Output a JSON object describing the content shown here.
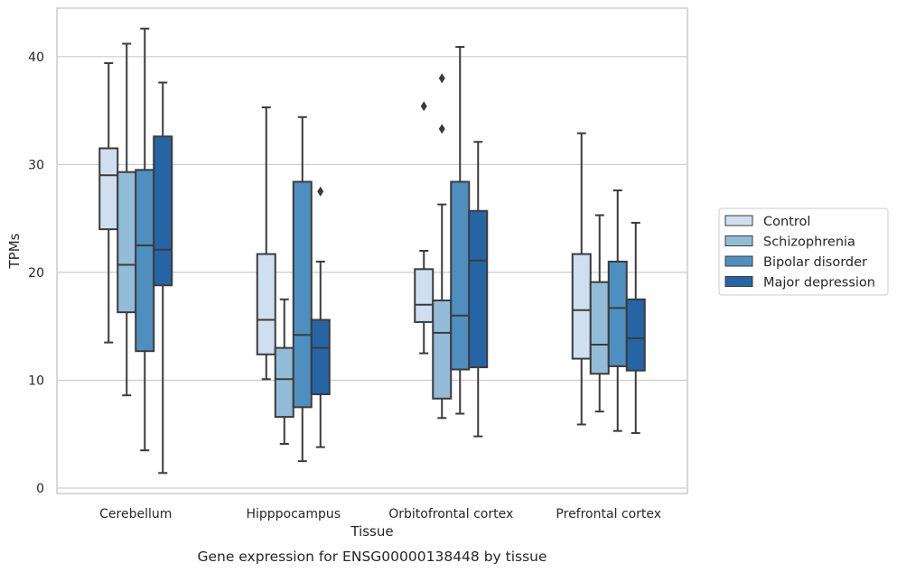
{
  "caption": "Gene expression for ENSG00000138448 by tissue",
  "colors": {
    "Control": "#cfdff0",
    "Schizophrenia": "#93bcd8",
    "Bipolar disorder": "#4f8fbf",
    "Major depression": "#2565a6",
    "line": "#3b3b3b",
    "grid": "#cccccc",
    "frame": "#cccccc"
  },
  "chart_data": {
    "type": "box",
    "xlabel": "Tissue",
    "ylabel": "TPMs",
    "ylim": [
      -0.5,
      44.5
    ],
    "yticks": [
      0,
      10,
      20,
      30,
      40
    ],
    "grid": "horizontal",
    "legend_position": "right",
    "categories": [
      "Cerebellum",
      "Hipppocampus",
      "Orbitofrontal cortex",
      "Prefrontal cortex"
    ],
    "series": [
      {
        "name": "Control",
        "boxes": [
          {
            "whisker_low": 13.5,
            "q1": 24.0,
            "median": 29.0,
            "q3": 31.5,
            "whisker_high": 39.4,
            "outliers": []
          },
          {
            "whisker_low": 10.1,
            "q1": 12.4,
            "median": 15.6,
            "q3": 21.7,
            "whisker_high": 35.3,
            "outliers": []
          },
          {
            "whisker_low": 12.5,
            "q1": 15.4,
            "median": 17.0,
            "q3": 20.3,
            "whisker_high": 22.0,
            "outliers": [
              35.4
            ]
          },
          {
            "whisker_low": 5.9,
            "q1": 12.0,
            "median": 16.5,
            "q3": 21.7,
            "whisker_high": 32.9,
            "outliers": []
          }
        ]
      },
      {
        "name": "Schizophrenia",
        "boxes": [
          {
            "whisker_low": 8.6,
            "q1": 16.3,
            "median": 20.7,
            "q3": 29.3,
            "whisker_high": 41.2,
            "outliers": []
          },
          {
            "whisker_low": 4.1,
            "q1": 6.6,
            "median": 10.1,
            "q3": 13.0,
            "whisker_high": 17.5,
            "outliers": []
          },
          {
            "whisker_low": 6.5,
            "q1": 8.3,
            "median": 14.4,
            "q3": 17.4,
            "whisker_high": 26.3,
            "outliers": [
              33.3,
              38.0
            ]
          },
          {
            "whisker_low": 7.1,
            "q1": 10.6,
            "median": 13.3,
            "q3": 19.1,
            "whisker_high": 25.3,
            "outliers": []
          }
        ]
      },
      {
        "name": "Bipolar disorder",
        "boxes": [
          {
            "whisker_low": 3.5,
            "q1": 12.7,
            "median": 22.5,
            "q3": 29.5,
            "whisker_high": 42.6,
            "outliers": []
          },
          {
            "whisker_low": 2.5,
            "q1": 7.5,
            "median": 14.2,
            "q3": 28.4,
            "whisker_high": 34.4,
            "outliers": []
          },
          {
            "whisker_low": 6.9,
            "q1": 11.0,
            "median": 16.0,
            "q3": 28.4,
            "whisker_high": 40.9,
            "outliers": []
          },
          {
            "whisker_low": 5.3,
            "q1": 11.3,
            "median": 16.7,
            "q3": 21.0,
            "whisker_high": 27.6,
            "outliers": []
          }
        ]
      },
      {
        "name": "Major depression",
        "boxes": [
          {
            "whisker_low": 1.4,
            "q1": 18.8,
            "median": 22.1,
            "q3": 32.6,
            "whisker_high": 37.6,
            "outliers": []
          },
          {
            "whisker_low": 3.8,
            "q1": 8.7,
            "median": 13.0,
            "q3": 15.6,
            "whisker_high": 21.0,
            "outliers": [
              27.5
            ]
          },
          {
            "whisker_low": 4.8,
            "q1": 11.2,
            "median": 21.1,
            "q3": 25.7,
            "whisker_high": 32.1,
            "outliers": []
          },
          {
            "whisker_low": 5.1,
            "q1": 10.9,
            "median": 13.9,
            "q3": 17.5,
            "whisker_high": 24.6,
            "outliers": []
          }
        ]
      }
    ]
  }
}
